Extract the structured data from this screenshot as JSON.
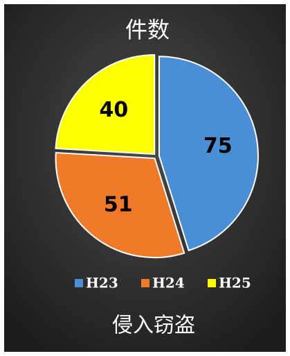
{
  "chart_data": {
    "type": "pie",
    "title": "件数",
    "caption": "侵入窃盗",
    "categories": [
      "H23",
      "H24",
      "H25"
    ],
    "values": [
      75,
      51,
      40
    ],
    "colors": [
      "#4a8fd6",
      "#f07a2a",
      "#ffff00"
    ],
    "legend": "bottom"
  }
}
